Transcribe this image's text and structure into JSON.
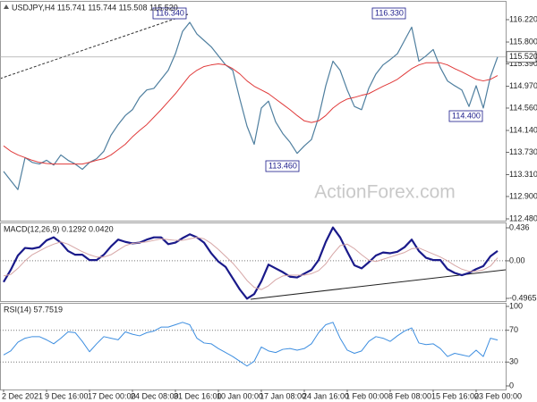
{
  "chart_data": [
    {
      "type": "line",
      "title": "USDJPY,H4 115.741 115.744 115.508 115.520",
      "series": [
        {
          "color": "#4f7f9f",
          "line_width": 1.2,
          "values": [
            113.37,
            113.2,
            113.03,
            113.63,
            113.54,
            113.51,
            113.58,
            113.49,
            113.68,
            113.58,
            113.51,
            113.41,
            113.54,
            113.61,
            113.75,
            114.05,
            114.25,
            114.42,
            114.53,
            114.76,
            114.9,
            114.93,
            115.1,
            115.27,
            115.58,
            116.0,
            116.17,
            115.95,
            115.83,
            115.71,
            115.54,
            115.37,
            115.27,
            114.73,
            114.22,
            113.88,
            114.56,
            114.69,
            114.3,
            114.08,
            113.92,
            113.71,
            113.85,
            113.97,
            114.39,
            114.98,
            115.44,
            115.27,
            114.9,
            114.59,
            114.53,
            114.93,
            115.2,
            115.37,
            115.47,
            115.58,
            115.83,
            116.08,
            115.44,
            115.54,
            115.66,
            115.32,
            115.07,
            114.98,
            114.9,
            114.59,
            114.98,
            114.56,
            115.15,
            115.52
          ]
        },
        {
          "color": "#e03a3a",
          "line_width": 1,
          "values": [
            113.85,
            113.75,
            113.68,
            113.63,
            113.58,
            113.54,
            113.52,
            113.51,
            113.51,
            113.51,
            113.51,
            113.51,
            113.54,
            113.58,
            113.61,
            113.68,
            113.78,
            113.88,
            114.02,
            114.14,
            114.25,
            114.39,
            114.53,
            114.68,
            114.83,
            115.0,
            115.17,
            115.27,
            115.34,
            115.37,
            115.39,
            115.37,
            115.3,
            115.2,
            115.07,
            114.97,
            114.9,
            114.83,
            114.73,
            114.63,
            114.53,
            114.42,
            114.32,
            114.29,
            114.32,
            114.42,
            114.56,
            114.66,
            114.73,
            114.76,
            114.8,
            114.83,
            114.9,
            114.97,
            115.03,
            115.1,
            115.2,
            115.3,
            115.37,
            115.41,
            115.41,
            115.41,
            115.37,
            115.3,
            115.24,
            115.17,
            115.1,
            115.07,
            115.1,
            115.17
          ]
        }
      ],
      "ylim": [
        112.48,
        116.22
      ],
      "yticks": [
        {
          "value": 116.22,
          "label": "116.220"
        },
        {
          "value": 115.8,
          "label": "115.800"
        },
        {
          "value": 115.39,
          "label": "115.390"
        },
        {
          "value": 114.97,
          "label": "114.970"
        },
        {
          "value": 114.56,
          "label": "114.560"
        },
        {
          "value": 114.14,
          "label": "114.140"
        },
        {
          "value": 113.73,
          "label": "113.730"
        },
        {
          "value": 113.31,
          "label": "113.310"
        },
        {
          "value": 112.9,
          "label": "112.900"
        },
        {
          "value": 112.48,
          "label": "112.480"
        }
      ],
      "last": {
        "value": 115.52,
        "label": "115.520"
      },
      "annotations": [
        "116.340",
        "116.330",
        "113.460",
        "114.400"
      ],
      "watermark": "ActionForex.com",
      "grid": false
    },
    {
      "type": "line",
      "title": "MACD(12,26,9) 0.1292 0.0420",
      "series": [
        {
          "color": "#1a1a8a",
          "line_width": 2.2,
          "values": [
            -0.28,
            -0.12,
            0.07,
            0.17,
            0.16,
            0.18,
            0.27,
            0.31,
            0.24,
            0.13,
            0.08,
            0.08,
            0.01,
            0.01,
            0.08,
            0.19,
            0.28,
            0.25,
            0.23,
            0.24,
            0.28,
            0.31,
            0.31,
            0.22,
            0.24,
            0.3,
            0.35,
            0.31,
            0.24,
            0.1,
            -0.01,
            -0.08,
            -0.23,
            -0.38,
            -0.5,
            -0.44,
            -0.27,
            -0.05,
            -0.1,
            -0.15,
            -0.21,
            -0.22,
            -0.17,
            -0.12,
            0.01,
            0.25,
            0.44,
            0.31,
            0.12,
            -0.06,
            -0.1,
            -0.02,
            0.07,
            0.11,
            0.1,
            0.12,
            0.18,
            0.28,
            0.13,
            0.04,
            0.01,
            0.01,
            -0.11,
            -0.16,
            -0.19,
            -0.16,
            -0.11,
            -0.07,
            0.06,
            0.13
          ]
        },
        {
          "color": "#d6a6a6",
          "line_width": 1,
          "values": [
            -0.2,
            -0.18,
            -0.1,
            0.0,
            0.08,
            0.13,
            0.18,
            0.22,
            0.25,
            0.22,
            0.17,
            0.12,
            0.08,
            0.05,
            0.05,
            0.08,
            0.14,
            0.2,
            0.23,
            0.24,
            0.25,
            0.27,
            0.29,
            0.28,
            0.27,
            0.27,
            0.29,
            0.31,
            0.29,
            0.23,
            0.15,
            0.06,
            -0.03,
            -0.14,
            -0.26,
            -0.35,
            -0.38,
            -0.33,
            -0.25,
            -0.2,
            -0.19,
            -0.19,
            -0.19,
            -0.17,
            -0.13,
            -0.04,
            0.09,
            0.2,
            0.22,
            0.16,
            0.08,
            0.01,
            -0.01,
            0.02,
            0.05,
            0.08,
            0.11,
            0.16,
            0.17,
            0.13,
            0.09,
            0.05,
            0.0,
            -0.06,
            -0.11,
            -0.14,
            -0.14,
            -0.12,
            -0.07,
            0.04
          ]
        }
      ],
      "ylim": [
        -0.4965,
        0.436
      ],
      "yticks": [
        0.436,
        {
          "value": 0,
          "label": "0.00"
        },
        -0.4965
      ],
      "grid": true
    },
    {
      "type": "line",
      "title": "RSI(14) 57.7519",
      "categories": [
        "2 Dec 2021",
        null,
        null,
        null,
        null,
        null,
        "9 Dec 16:00",
        null,
        null,
        null,
        null,
        null,
        "17 Dec 00:00",
        null,
        null,
        null,
        null,
        null,
        "24 Dec 08:00",
        null,
        null,
        null,
        null,
        null,
        "31 Dec 16:00",
        null,
        null,
        null,
        null,
        null,
        "10 Jan 00:00",
        null,
        null,
        null,
        null,
        null,
        "17 Jan 08:00",
        null,
        null,
        null,
        null,
        null,
        "24 Jan 16:00",
        null,
        null,
        null,
        null,
        null,
        "1 Feb 00:00",
        null,
        null,
        null,
        null,
        null,
        "8 Feb 08:00",
        null,
        null,
        null,
        null,
        null,
        "15 Feb 16:00",
        null,
        null,
        null,
        null,
        null,
        "23 Feb 00:00",
        null,
        null,
        null
      ],
      "series": [
        {
          "color": "#3d8ee0",
          "line_width": 1,
          "values": [
            39,
            44,
            55,
            60,
            62,
            62,
            58,
            53,
            60,
            68,
            67,
            56,
            43,
            53,
            62,
            60,
            58,
            68,
            65,
            63,
            67,
            69,
            74,
            74,
            77,
            80,
            77,
            60,
            54,
            53,
            47,
            42,
            37,
            31,
            25,
            31,
            49,
            44,
            42,
            46,
            47,
            45,
            47,
            53,
            67,
            77,
            80,
            60,
            45,
            41,
            44,
            56,
            62,
            60,
            56,
            63,
            69,
            73,
            54,
            52,
            53,
            47,
            37,
            41,
            39,
            37,
            45,
            37,
            60,
            57.75
          ]
        }
      ],
      "ylim": [
        0,
        100
      ],
      "yticks": [
        100,
        70,
        30,
        0
      ],
      "grid": true
    }
  ]
}
